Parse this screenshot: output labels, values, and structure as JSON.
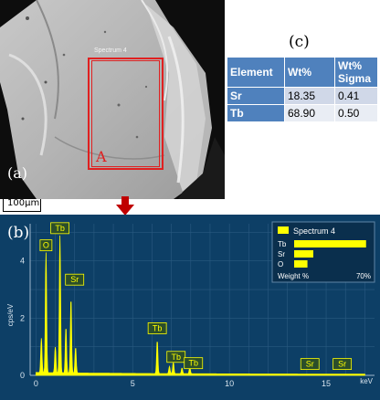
{
  "panel_a": {
    "label": "(a)",
    "spectrum_tag": "Spectrum 4",
    "roi_letter": "A",
    "scale_bar": "100μm"
  },
  "panel_c": {
    "label": "(c)",
    "headers": [
      "Element",
      "Wt%",
      "Wt% Sigma"
    ],
    "rows": [
      {
        "element": "Sr",
        "wt": "18.35",
        "sigma": "0.41"
      },
      {
        "element": "Tb",
        "wt": "68.90",
        "sigma": "0.50"
      }
    ]
  },
  "panel_b": {
    "label": "(b)",
    "legend": {
      "title": "Spectrum 4",
      "rows": [
        "Tb",
        "Sr",
        "O"
      ],
      "footer_left": "Weight %",
      "footer_right": "70%"
    }
  },
  "colors": {
    "spectrum": "#ffff00",
    "background": "#0d3f66",
    "roi": "#e02020",
    "table_header": "#4f81bd"
  },
  "chart_data": {
    "type": "line",
    "xlabel": "keV",
    "ylabel": "cps/eV",
    "xlim": [
      -0.3,
      17.5
    ],
    "ylim": [
      0,
      5.3
    ],
    "x_ticks": [
      0,
      5,
      10,
      15
    ],
    "y_ticks": [
      0,
      2,
      4
    ],
    "grid": true,
    "legend_position": "top-right",
    "peaks": [
      {
        "label": "O",
        "x": 0.52,
        "y": 4.2
      },
      {
        "label": "Tb",
        "x": 1.24,
        "y": 4.8
      },
      {
        "label": "Sr",
        "x": 1.81,
        "y": 2.6
      },
      {
        "label": "Tb",
        "x": 6.27,
        "y": 1.15
      },
      {
        "label": "Tb",
        "x": 7.1,
        "y": 0.4
      },
      {
        "label": "Tb",
        "x": 7.95,
        "y": 0.22
      },
      {
        "label": "Sr",
        "x": 14.16,
        "y": 0.0
      },
      {
        "label": "Sr",
        "x": 15.83,
        "y": 0.0
      }
    ],
    "legend_weights": [
      {
        "element": "Tb",
        "weight_percent": 68.9
      },
      {
        "element": "Sr",
        "weight_percent": 18.35
      },
      {
        "element": "O",
        "weight_percent": 12.75
      }
    ]
  }
}
